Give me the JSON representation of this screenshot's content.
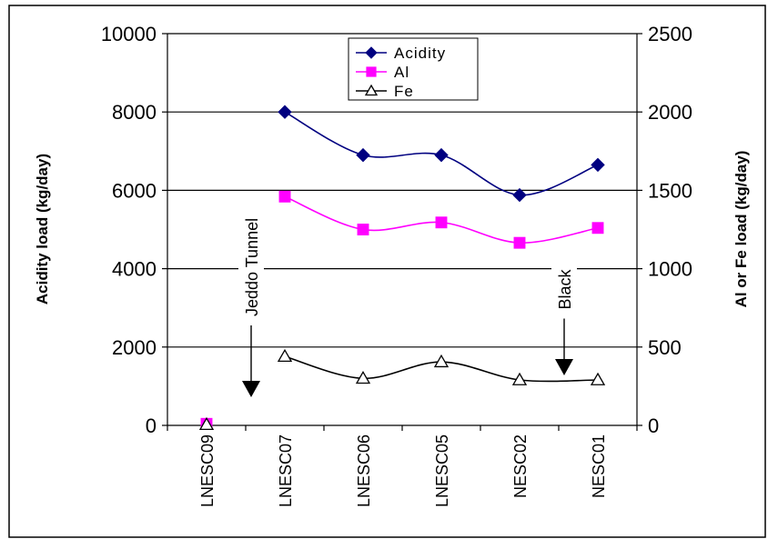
{
  "chart_data": {
    "type": "line",
    "categories": [
      "LNESC09",
      "LNESC07",
      "LNESC06",
      "LNESC05",
      "NESC02",
      "NESC01"
    ],
    "y_left": {
      "label": "Acidity load (kg/day)",
      "lim": [
        0,
        10000
      ],
      "ticks": [
        "0",
        "2000",
        "4000",
        "6000",
        "8000",
        "10000"
      ]
    },
    "y_right": {
      "label": "Al or Fe load (kg/day)",
      "lim": [
        0,
        2500
      ],
      "ticks": [
        "0",
        "500",
        "1000",
        "1500",
        "2000",
        "2500"
      ]
    },
    "grid": "horizontal",
    "legend_position": "top-center",
    "series": [
      {
        "name": "Acidity",
        "axis": "left",
        "marker": "diamond",
        "color": "#000080",
        "values": [
          null,
          8000,
          6900,
          6900,
          5880,
          6650
        ]
      },
      {
        "name": "Al",
        "axis": "right",
        "marker": "square",
        "color": "#ff00ff",
        "values": [
          10,
          1460,
          1250,
          1295,
          1165,
          1260
        ]
      },
      {
        "name": "Fe",
        "axis": "right",
        "marker": "triangle-open",
        "color": "#000000",
        "values": [
          5,
          440,
          300,
          405,
          290,
          290
        ]
      }
    ],
    "annotations": [
      {
        "text": "Jeddo Tunnel",
        "between": [
          "LNESC09",
          "LNESC07"
        ]
      },
      {
        "text": "Black",
        "between": [
          "NESC02",
          "NESC01"
        ]
      }
    ]
  }
}
